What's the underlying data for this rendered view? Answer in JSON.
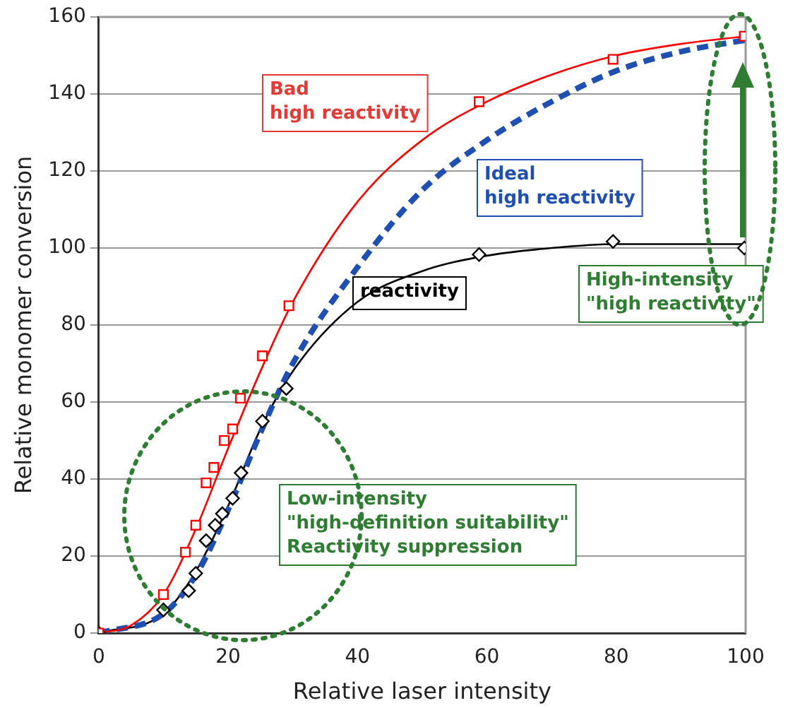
{
  "chart_data": {
    "type": "scatter",
    "xlabel": "Relative laser intensity",
    "ylabel": "Relative monomer conversion",
    "xlim": [
      0,
      100
    ],
    "xticks": [
      0,
      20,
      40,
      60,
      80,
      100
    ],
    "ylim": [
      0,
      160
    ],
    "yticks": [
      0,
      20,
      40,
      60,
      80,
      100,
      120,
      140,
      160
    ],
    "grid": "y",
    "legend": false,
    "series": [
      {
        "type": "line",
        "color": "#ff0000",
        "marker": "none",
        "line_style": "solid",
        "x": [
          0,
          5,
          10,
          15,
          20,
          25,
          30,
          40,
          50,
          60,
          70,
          80,
          90,
          100
        ],
        "values": [
          0,
          2,
          10,
          27,
          48,
          68,
          86,
          112,
          128,
          138,
          145,
          150,
          153,
          155
        ]
      },
      {
        "type": "line",
        "color": "#1f4fb0",
        "marker": "none",
        "line_style": "dashed",
        "x": [
          0,
          10,
          15,
          20,
          25,
          30,
          40,
          50,
          60,
          70,
          80,
          90,
          100
        ],
        "values": [
          0,
          5,
          15,
          32,
          52,
          70,
          95,
          115,
          128,
          138,
          146,
          151,
          154
        ]
      },
      {
        "type": "line",
        "color": "#000000",
        "marker": "none",
        "line_style": "solid",
        "x": [
          0,
          10,
          15,
          20,
          25,
          30,
          40,
          50,
          60,
          70,
          80,
          90,
          100
        ],
        "values": [
          0,
          5,
          16,
          33,
          53,
          68,
          86,
          94,
          98,
          100,
          101,
          101,
          101
        ]
      },
      {
        "type": "scatter",
        "color": "#ff0000",
        "marker": "square",
        "x": [
          0,
          10,
          13.4,
          15,
          16.6,
          17.8,
          19.4,
          20.7,
          21.9,
          25.3,
          29.4,
          58.8,
          79.5,
          99.8
        ],
        "values": [
          0,
          10,
          21,
          28,
          39,
          43,
          50,
          53,
          61,
          72,
          85,
          138,
          149,
          155
        ]
      },
      {
        "type": "scatter",
        "color": "#000000",
        "marker": "diamond",
        "x": [
          0,
          10,
          13.9,
          15,
          16.6,
          18,
          19.1,
          20.7,
          22,
          25.3,
          29,
          58.8,
          79.5,
          99.8
        ],
        "values": [
          0,
          6,
          11,
          15.5,
          24,
          28,
          31,
          35,
          41.6,
          55,
          63.5,
          98.3,
          101.7,
          100
        ]
      }
    ],
    "annotations": [
      "Bad\nhigh reactivity",
      "Ideal\nhigh reactivity",
      "reactivity",
      "High-intensity\n\"high reactivity\"",
      "Low-intensity\n\"high-definition suitability\"\nReactivity suppression"
    ]
  }
}
